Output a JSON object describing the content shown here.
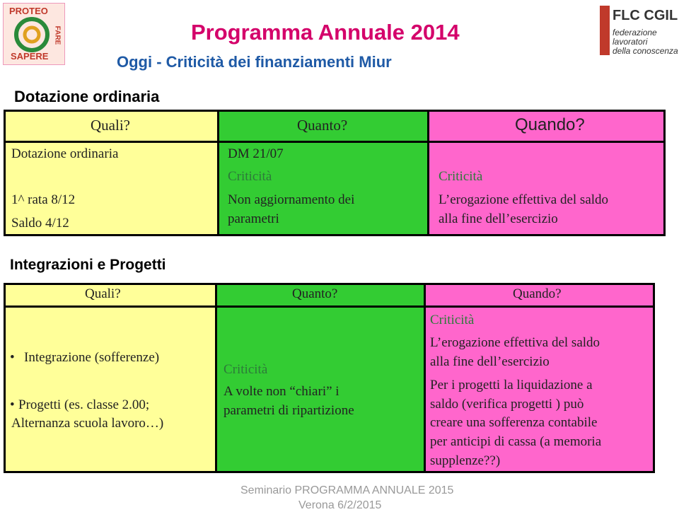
{
  "header": {
    "title": "Programma Annuale  2014",
    "subtitle": "Oggi - Criticità dei finanziamenti Miur",
    "logo_left": [
      "PROTEO",
      "FARE",
      "SAPERE"
    ],
    "logo_right": {
      "name": "FLC CGIL",
      "lines": [
        "federazione",
        "lavoratori",
        "della conoscenza"
      ]
    }
  },
  "section1": {
    "heading": "Dotazione ordinaria",
    "table": {
      "headers": [
        "Quali?",
        "Quanto?",
        "Quando?"
      ],
      "quali": [
        "Dotazione ordinaria",
        "1^ rata 8/12",
        "Saldo  4/12"
      ],
      "quanto": [
        "DM 21/07",
        "Criticità",
        "Non aggiornamento dei",
        "parametri"
      ],
      "quando": [
        "Criticità",
        "L’erogazione effettiva del saldo",
        "alla fine dell’esercizio"
      ]
    }
  },
  "section2": {
    "heading": "Integrazioni e Progetti",
    "table": {
      "headers": [
        "Quali?",
        "Quanto?",
        "Quando?"
      ],
      "quali": [
        "Integrazione (sofferenze)",
        "Progetti (es. classe 2.00;",
        "Alternanza scuola lavoro…)"
      ],
      "quanto": [
        "Criticità",
        "A volte non “chiari” i",
        "parametri di ripartizione"
      ],
      "quando": [
        "Criticità",
        "L’erogazione effettiva del saldo",
        "alla fine dell’esercizio",
        "Per i progetti la liquidazione a",
        "saldo (verifica progetti ) può",
        "creare una sofferenza contabile",
        "per anticipi di cassa  (a memoria",
        "supplenze??)"
      ]
    }
  },
  "footer": [
    "Seminario PROGRAMMA ANNUALE 2015",
    "Verona 6/2/2015"
  ]
}
